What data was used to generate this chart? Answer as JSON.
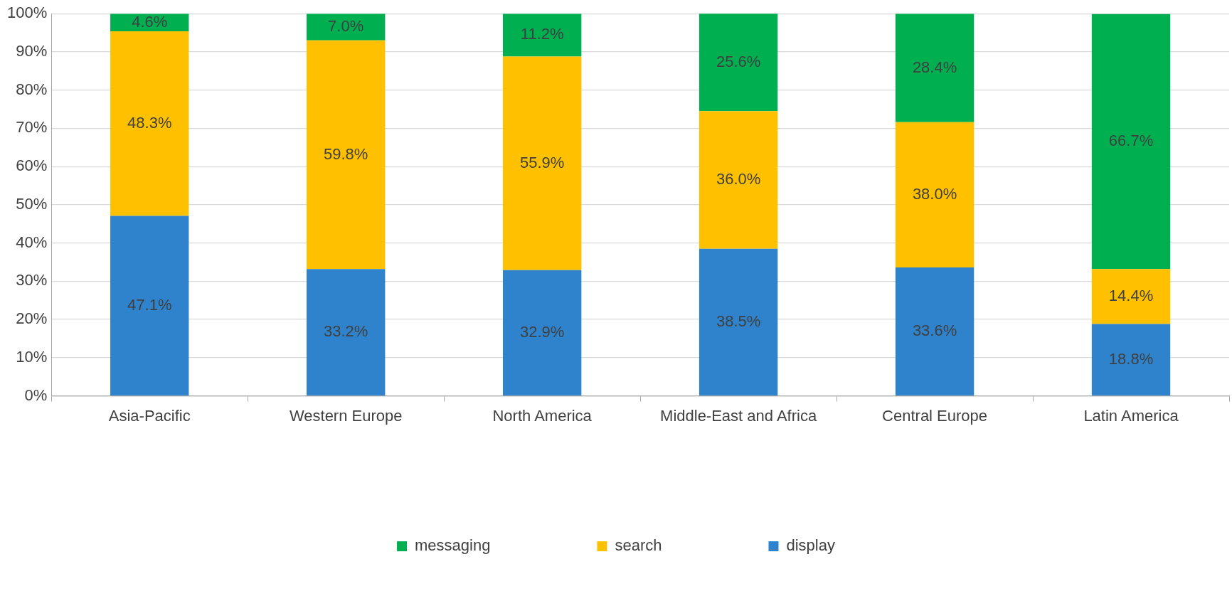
{
  "chart_data": {
    "type": "bar",
    "stacked": true,
    "categories": [
      "Asia-Pacific",
      "Western Europe",
      "North America",
      "Middle-East and Africa",
      "Central Europe",
      "Latin America"
    ],
    "series": [
      {
        "name": "display",
        "color": "#2e83cc",
        "values": [
          47.1,
          33.2,
          32.9,
          38.5,
          33.6,
          18.8
        ],
        "value_labels": [
          "47.1%",
          "33.2%",
          "32.9%",
          "38.5%",
          "33.6%",
          "18.8%"
        ]
      },
      {
        "name": "search",
        "color": "#ffc000",
        "values": [
          48.3,
          59.8,
          55.9,
          36.0,
          38.0,
          14.4
        ],
        "value_labels": [
          "48.3%",
          "59.8%",
          "55.9%",
          "36.0%",
          "38.0%",
          "14.4%"
        ]
      },
      {
        "name": "messaging",
        "color": "#00b050",
        "values": [
          4.6,
          7.0,
          11.2,
          25.6,
          28.4,
          66.7
        ],
        "value_labels": [
          "4.6%",
          "7.0%",
          "11.2%",
          "25.6%",
          "28.4%",
          "66.7%"
        ]
      }
    ],
    "ylim": [
      0,
      100
    ],
    "yticks": [
      {
        "value": 0,
        "label": "0%"
      },
      {
        "value": 10,
        "label": "10%"
      },
      {
        "value": 20,
        "label": "20%"
      },
      {
        "value": 30,
        "label": "30%"
      },
      {
        "value": 40,
        "label": "40%"
      },
      {
        "value": 50,
        "label": "50%"
      },
      {
        "value": 60,
        "label": "60%"
      },
      {
        "value": 70,
        "label": "70%"
      },
      {
        "value": 80,
        "label": "80%"
      },
      {
        "value": 90,
        "label": "90%"
      },
      {
        "value": 100,
        "label": "100%"
      }
    ],
    "grid": "y",
    "legend": "bottom"
  }
}
